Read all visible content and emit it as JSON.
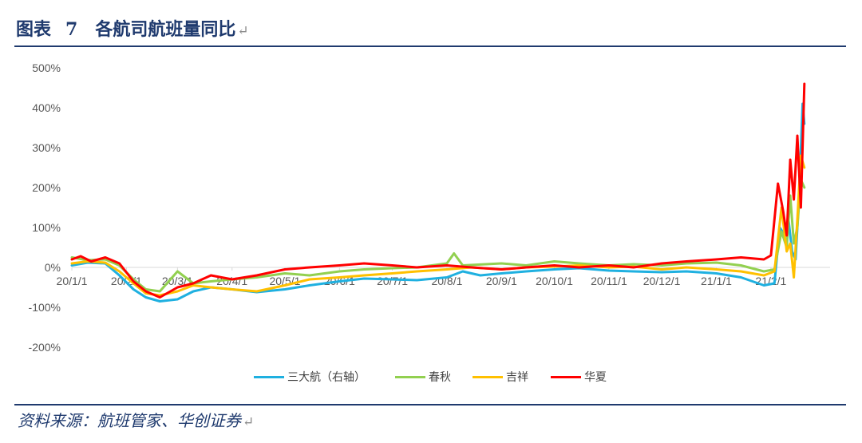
{
  "header": {
    "label": "图表",
    "number": "7",
    "title": "各航司航班量同比"
  },
  "footer": {
    "source": "资料来源：航班管家、华创证券"
  },
  "chart_data": {
    "type": "line",
    "title": "各航司航班量同比",
    "xlabel": "",
    "ylabel": "",
    "ylim": [
      -200,
      500
    ],
    "y_ticks": [
      "500%",
      "400%",
      "300%",
      "200%",
      "100%",
      "0%",
      "-100%",
      "-200%"
    ],
    "y_tick_values": [
      500,
      400,
      300,
      200,
      100,
      0,
      -100,
      -200
    ],
    "x_ticks": [
      "20/1/1",
      "20/2/1",
      "20/3/1",
      "20/4/1",
      "20/5/1",
      "20/6/1",
      "20/7/1",
      "20/8/1",
      "20/9/1",
      "20/10/1",
      "20/11/1",
      "20/12/1",
      "21/1/1",
      "21/2/1"
    ],
    "x_tick_dates": [
      "2020-01-01",
      "2020-02-01",
      "2020-03-01",
      "2020-04-01",
      "2020-05-01",
      "2020-06-01",
      "2020-07-01",
      "2020-08-01",
      "2020-09-01",
      "2020-10-01",
      "2020-11-01",
      "2020-12-01",
      "2021-01-01",
      "2021-02-01"
    ],
    "grid": false,
    "legend_position": "bottom",
    "series": [
      {
        "name": "三大航（右轴）",
        "color": "#1fb0e0",
        "points": [
          [
            "2020-01-01",
            5
          ],
          [
            "2020-01-10",
            12
          ],
          [
            "2020-01-20",
            10
          ],
          [
            "2020-01-28",
            -20
          ],
          [
            "2020-02-05",
            -55
          ],
          [
            "2020-02-12",
            -75
          ],
          [
            "2020-02-20",
            -85
          ],
          [
            "2020-03-01",
            -80
          ],
          [
            "2020-03-10",
            -60
          ],
          [
            "2020-03-20",
            -50
          ],
          [
            "2020-04-01",
            -55
          ],
          [
            "2020-04-15",
            -62
          ],
          [
            "2020-05-01",
            -55
          ],
          [
            "2020-05-15",
            -45
          ],
          [
            "2020-06-01",
            -35
          ],
          [
            "2020-06-15",
            -28
          ],
          [
            "2020-07-01",
            -30
          ],
          [
            "2020-07-15",
            -32
          ],
          [
            "2020-08-01",
            -25
          ],
          [
            "2020-08-10",
            -10
          ],
          [
            "2020-08-20",
            -20
          ],
          [
            "2020-09-01",
            -15
          ],
          [
            "2020-09-15",
            -10
          ],
          [
            "2020-10-01",
            -5
          ],
          [
            "2020-10-15",
            -2
          ],
          [
            "2020-11-01",
            -8
          ],
          [
            "2020-11-15",
            -10
          ],
          [
            "2020-12-01",
            -12
          ],
          [
            "2020-12-15",
            -10
          ],
          [
            "2021-01-01",
            -15
          ],
          [
            "2021-01-15",
            -25
          ],
          [
            "2021-01-28",
            -45
          ],
          [
            "2021-02-03",
            -40
          ],
          [
            "2021-02-06",
            100
          ],
          [
            "2021-02-09",
            80
          ],
          [
            "2021-02-11",
            120
          ],
          [
            "2021-02-13",
            40
          ],
          [
            "2021-02-15",
            20
          ],
          [
            "2021-02-17",
            180
          ],
          [
            "2021-02-19",
            410
          ],
          [
            "2021-02-20",
            360
          ]
        ]
      },
      {
        "name": "春秋",
        "color": "#92d050",
        "points": [
          [
            "2020-01-01",
            25
          ],
          [
            "2020-01-10",
            18
          ],
          [
            "2020-01-20",
            20
          ],
          [
            "2020-01-28",
            5
          ],
          [
            "2020-02-05",
            -30
          ],
          [
            "2020-02-12",
            -55
          ],
          [
            "2020-02-20",
            -60
          ],
          [
            "2020-03-01",
            -10
          ],
          [
            "2020-03-10",
            -40
          ],
          [
            "2020-03-20",
            -35
          ],
          [
            "2020-04-01",
            -30
          ],
          [
            "2020-04-15",
            -25
          ],
          [
            "2020-05-01",
            -15
          ],
          [
            "2020-05-15",
            -20
          ],
          [
            "2020-06-01",
            -10
          ],
          [
            "2020-06-15",
            -5
          ],
          [
            "2020-07-01",
            -2
          ],
          [
            "2020-07-15",
            0
          ],
          [
            "2020-08-01",
            10
          ],
          [
            "2020-08-05",
            35
          ],
          [
            "2020-08-10",
            5
          ],
          [
            "2020-09-01",
            10
          ],
          [
            "2020-09-15",
            5
          ],
          [
            "2020-10-01",
            15
          ],
          [
            "2020-10-15",
            10
          ],
          [
            "2020-11-01",
            5
          ],
          [
            "2020-11-15",
            8
          ],
          [
            "2020-12-01",
            5
          ],
          [
            "2020-12-15",
            10
          ],
          [
            "2021-01-01",
            12
          ],
          [
            "2021-01-15",
            5
          ],
          [
            "2021-01-28",
            -10
          ],
          [
            "2021-02-03",
            -5
          ],
          [
            "2021-02-07",
            90
          ],
          [
            "2021-02-10",
            50
          ],
          [
            "2021-02-12",
            180
          ],
          [
            "2021-02-14",
            60
          ],
          [
            "2021-02-16",
            100
          ],
          [
            "2021-02-18",
            220
          ],
          [
            "2021-02-20",
            200
          ]
        ]
      },
      {
        "name": "吉祥",
        "color": "#ffc000",
        "points": [
          [
            "2020-01-01",
            10
          ],
          [
            "2020-01-10",
            15
          ],
          [
            "2020-01-20",
            12
          ],
          [
            "2020-01-28",
            -10
          ],
          [
            "2020-02-05",
            -40
          ],
          [
            "2020-02-12",
            -65
          ],
          [
            "2020-02-20",
            -70
          ],
          [
            "2020-03-01",
            -60
          ],
          [
            "2020-03-10",
            -45
          ],
          [
            "2020-03-20",
            -50
          ],
          [
            "2020-04-01",
            -55
          ],
          [
            "2020-04-15",
            -60
          ],
          [
            "2020-05-01",
            -45
          ],
          [
            "2020-05-15",
            -30
          ],
          [
            "2020-06-01",
            -25
          ],
          [
            "2020-06-15",
            -20
          ],
          [
            "2020-07-01",
            -15
          ],
          [
            "2020-07-15",
            -10
          ],
          [
            "2020-08-01",
            -5
          ],
          [
            "2020-08-15",
            0
          ],
          [
            "2020-09-01",
            -5
          ],
          [
            "2020-09-15",
            0
          ],
          [
            "2020-10-01",
            2
          ],
          [
            "2020-10-15",
            5
          ],
          [
            "2020-11-01",
            0
          ],
          [
            "2020-11-15",
            2
          ],
          [
            "2020-12-01",
            -5
          ],
          [
            "2020-12-15",
            0
          ],
          [
            "2021-01-01",
            -5
          ],
          [
            "2021-01-15",
            -10
          ],
          [
            "2021-01-28",
            -20
          ],
          [
            "2021-02-03",
            -10
          ],
          [
            "2021-02-07",
            150
          ],
          [
            "2021-02-10",
            40
          ],
          [
            "2021-02-12",
            60
          ],
          [
            "2021-02-14",
            -25
          ],
          [
            "2021-02-16",
            120
          ],
          [
            "2021-02-18",
            280
          ],
          [
            "2021-02-20",
            250
          ]
        ]
      },
      {
        "name": "华夏",
        "color": "#ff0000",
        "points": [
          [
            "2020-01-01",
            20
          ],
          [
            "2020-01-06",
            28
          ],
          [
            "2020-01-12",
            15
          ],
          [
            "2020-01-20",
            25
          ],
          [
            "2020-01-28",
            10
          ],
          [
            "2020-02-05",
            -35
          ],
          [
            "2020-02-12",
            -60
          ],
          [
            "2020-02-20",
            -75
          ],
          [
            "2020-03-01",
            -50
          ],
          [
            "2020-03-10",
            -40
          ],
          [
            "2020-03-20",
            -20
          ],
          [
            "2020-04-01",
            -30
          ],
          [
            "2020-04-15",
            -20
          ],
          [
            "2020-05-01",
            -5
          ],
          [
            "2020-05-15",
            0
          ],
          [
            "2020-06-01",
            5
          ],
          [
            "2020-06-15",
            10
          ],
          [
            "2020-07-01",
            5
          ],
          [
            "2020-07-15",
            0
          ],
          [
            "2020-08-01",
            5
          ],
          [
            "2020-08-15",
            0
          ],
          [
            "2020-09-01",
            -5
          ],
          [
            "2020-09-15",
            0
          ],
          [
            "2020-10-01",
            5
          ],
          [
            "2020-10-15",
            0
          ],
          [
            "2020-11-01",
            5
          ],
          [
            "2020-11-15",
            0
          ],
          [
            "2020-12-01",
            10
          ],
          [
            "2020-12-15",
            15
          ],
          [
            "2021-01-01",
            20
          ],
          [
            "2021-01-15",
            25
          ],
          [
            "2021-01-28",
            20
          ],
          [
            "2021-02-01",
            30
          ],
          [
            "2021-02-05",
            210
          ],
          [
            "2021-02-08",
            140
          ],
          [
            "2021-02-10",
            80
          ],
          [
            "2021-02-12",
            270
          ],
          [
            "2021-02-14",
            170
          ],
          [
            "2021-02-16",
            330
          ],
          [
            "2021-02-18",
            150
          ],
          [
            "2021-02-20",
            460
          ]
        ]
      }
    ]
  }
}
